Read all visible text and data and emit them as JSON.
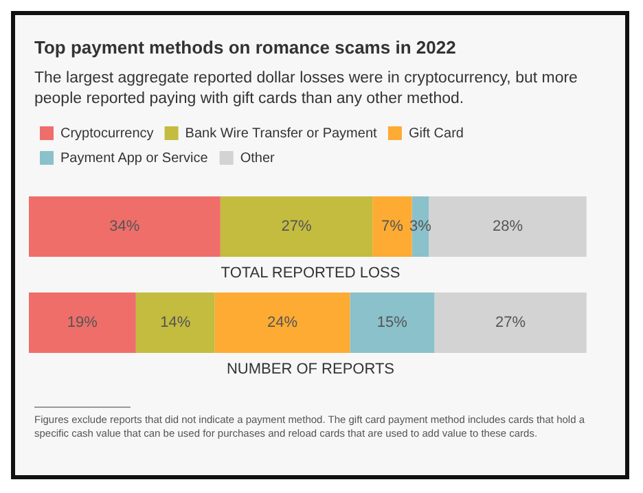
{
  "chart_data": {
    "type": "bar",
    "orientation": "horizontal",
    "stacked": true,
    "title": "Top payment methods on romance scams in 2022",
    "subtitle": "The largest aggregate reported dollar losses were in cryptocurrency, but more people reported paying with gift cards than any other method.",
    "categories": [
      "TOTAL REPORTED LOSS",
      "NUMBER OF REPORTS"
    ],
    "series": [
      {
        "name": "Cryptocurrency",
        "color": "#ef6e6a",
        "values": [
          34,
          19
        ],
        "value_labels": [
          "34%",
          "19%"
        ]
      },
      {
        "name": "Bank Wire Transfer or Payment",
        "color": "#c3bc3f",
        "values": [
          27,
          14
        ],
        "value_labels": [
          "27%",
          "14%"
        ]
      },
      {
        "name": "Gift Card",
        "color": "#fdab33",
        "values": [
          7,
          24
        ],
        "value_labels": [
          "7%",
          "24%"
        ]
      },
      {
        "name": "Payment App or Service",
        "color": "#8bc1cb",
        "values": [
          3,
          15
        ],
        "value_labels": [
          "3%",
          "15%"
        ]
      },
      {
        "name": "Other",
        "color": "#d3d3d3",
        "values": [
          28,
          27
        ],
        "value_labels": [
          "28%",
          "27%"
        ]
      }
    ],
    "legend": "top left",
    "tick_labels": false,
    "annotations": [
      "Figures exclude reports that did not indicate a payment method. The gift card payment method includes cards that hold a specific cash value that can be used for purchases and reload cards that are used to add value to these cards."
    ]
  }
}
